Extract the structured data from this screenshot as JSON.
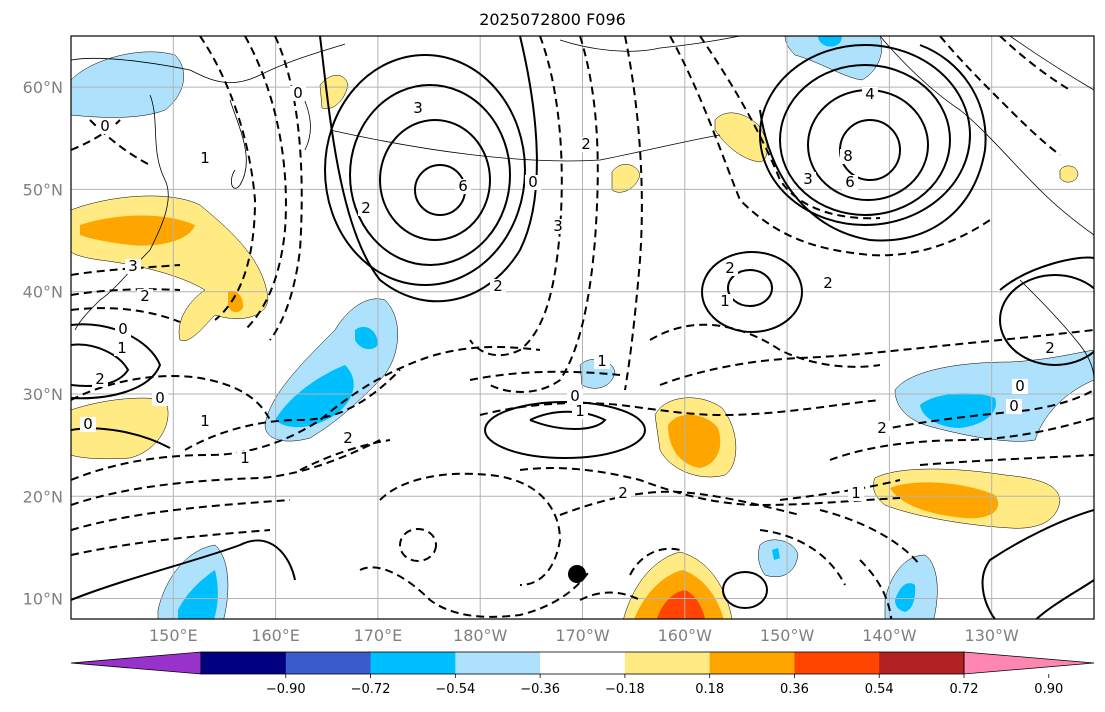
{
  "title": "2025072800 F096",
  "map": {
    "lon_ticks": [
      "150°E",
      "160°E",
      "170°E",
      "180°W",
      "170°W",
      "160°W",
      "150°W",
      "140°W",
      "130°W"
    ],
    "lat_ticks": [
      "10°N",
      "20°N",
      "30°N",
      "40°N",
      "50°N",
      "60°N"
    ],
    "lon_range": [
      140,
      240
    ],
    "lat_range": [
      8,
      65
    ],
    "grid": true
  },
  "colorbar": {
    "colors": [
      "#9932cc",
      "#000080",
      "#3a5bcc",
      "#00bfff",
      "#aee1fb",
      "#ffffff",
      "#ffea83",
      "#ffa500",
      "#ff4500",
      "#b22222",
      "#ff86b0"
    ],
    "labels": [
      "−0.90",
      "−0.72",
      "−0.54",
      "−0.36",
      "−0.18",
      "0.18",
      "0.36",
      "0.54",
      "0.72",
      "0.90"
    ],
    "extend": "both"
  },
  "contour_labels": [
    "3",
    "6",
    "0",
    "2",
    "3",
    "4",
    "8",
    "6",
    "3",
    "2",
    "2",
    "0",
    "0",
    "1",
    "2",
    "1",
    "2",
    "3",
    "2",
    "0",
    "1",
    "2",
    "0",
    "0",
    "2",
    "1",
    "1",
    "2",
    "0",
    "1",
    "1",
    "0",
    "0",
    "2",
    "1",
    "2"
  ],
  "colors": {
    "contour": "#000000",
    "grid": "#b3b3b3",
    "tick_text": "#808080"
  }
}
